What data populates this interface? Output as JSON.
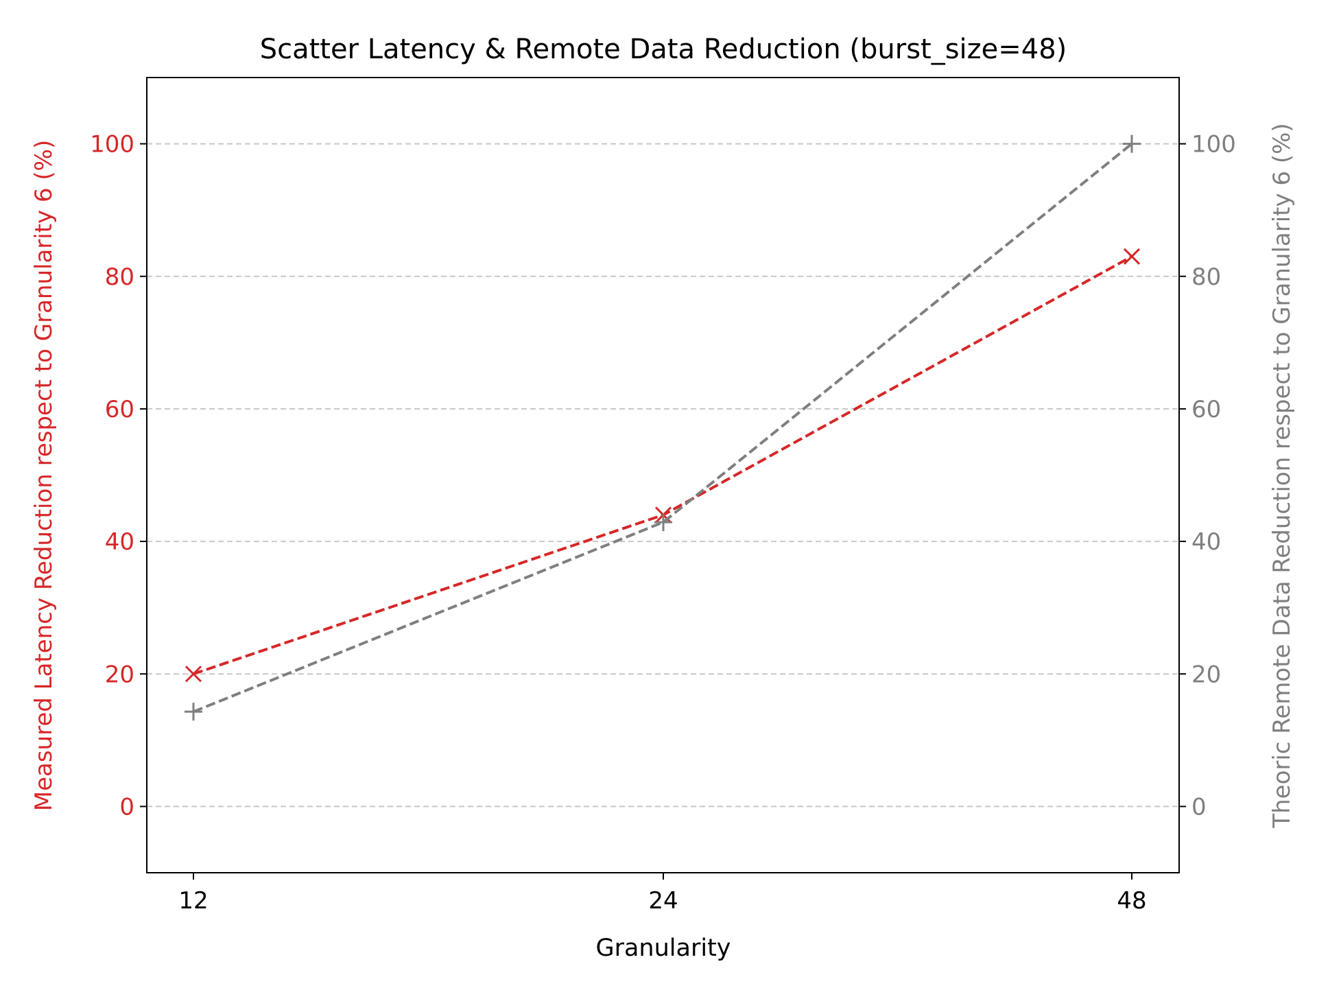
{
  "chart_data": {
    "type": "line",
    "title": "Scatter Latency & Remote Data Reduction (burst_size=48)",
    "xlabel": "Granularity",
    "ylabel_left": "Measured Latency Reduction respect to Granularity 6 (%)",
    "ylabel_right": "Theoric Remote Data Reduction respect to Granularity 6 (%)",
    "x": [
      12,
      24,
      48
    ],
    "x_tick_labels": [
      "12",
      "24",
      "48"
    ],
    "y_ticks": [
      0,
      20,
      40,
      60,
      80,
      100
    ],
    "ylim_left": [
      -10,
      110
    ],
    "ylim_right": [
      -10,
      110
    ],
    "grid": "horizontal dashed",
    "series": [
      {
        "axis": "left",
        "values": [
          20.0,
          44.0,
          83.0
        ],
        "color": "#d62728",
        "marker": "x",
        "linestyle": "dashed"
      },
      {
        "axis": "right",
        "values": [
          14.3,
          42.9,
          100.0
        ],
        "color": "#7f7f7f",
        "marker": "+",
        "linestyle": "dashed"
      }
    ],
    "colors": {
      "left_axis": "#d62728",
      "right_axis": "#7f7f7f",
      "text": "#000000",
      "grid": "#c8c8c8"
    }
  }
}
